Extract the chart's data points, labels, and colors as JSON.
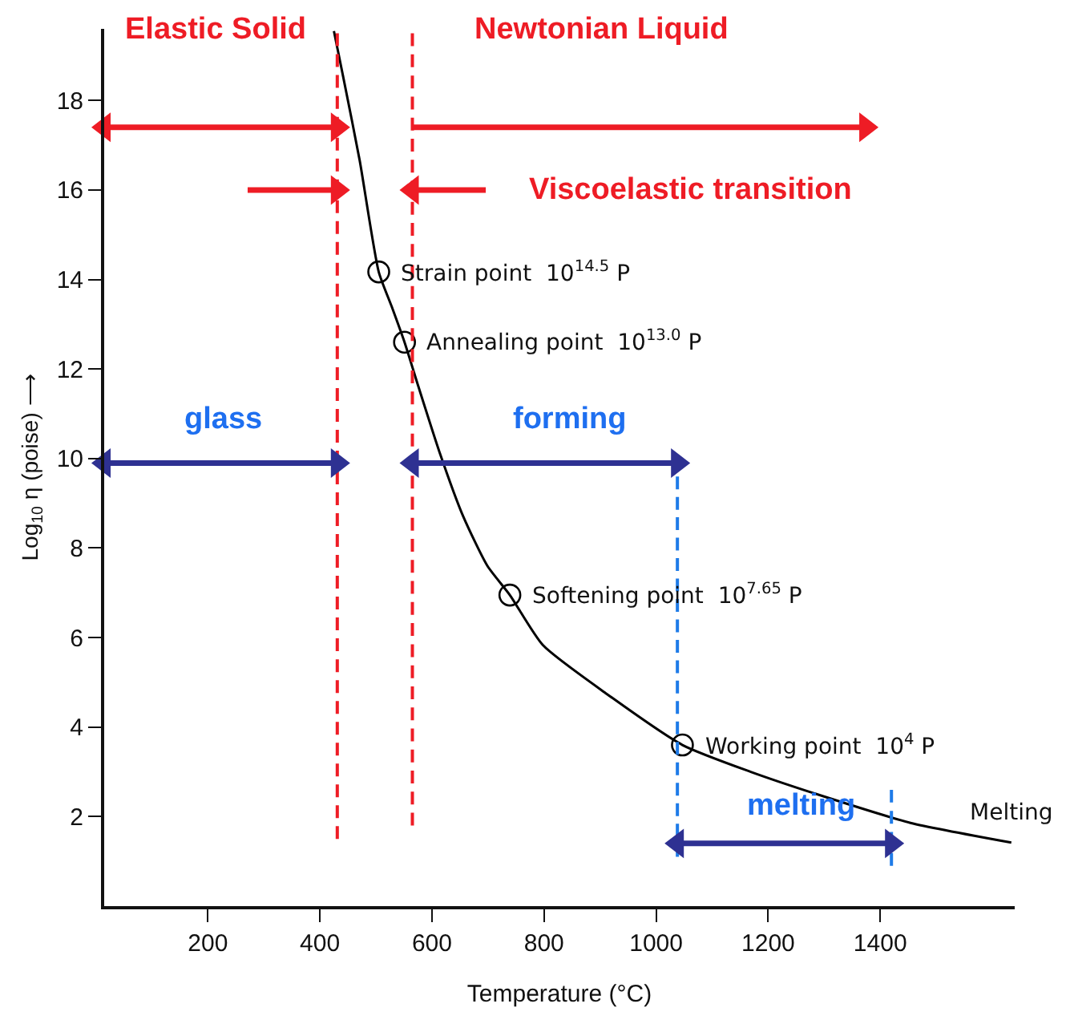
{
  "chart_data": {
    "type": "line",
    "xlabel": "Temperature (°C)",
    "ylabel": "Log$_{10}$ η (poise) ⟶",
    "xlim": [
      15,
      1640
    ],
    "ylim": [
      0,
      19.6
    ],
    "xticks": [
      200,
      400,
      600,
      800,
      1000,
      1200,
      1400
    ],
    "yticks": [
      2,
      4,
      6,
      8,
      10,
      12,
      14,
      16,
      18
    ],
    "series": [
      {
        "type": "line",
        "color": "#000000",
        "marker": "none",
        "line_style": "solid",
        "x": [
          425,
          442,
          471,
          505,
          528,
          551,
          576,
          613,
          656,
          699,
          739,
          798,
          912,
          1047,
          1169,
          1312,
          1454,
          1634
        ],
        "values": [
          19.55,
          18.5,
          16.66,
          14.17,
          13.4,
          12.6,
          11.6,
          10.16,
          8.7,
          7.6,
          6.95,
          5.83,
          4.74,
          3.6,
          3.0,
          2.4,
          1.86,
          1.42
        ]
      },
      {
        "type": "scatter",
        "color": "#000000",
        "marker": "circle",
        "x": [
          505,
          551,
          739,
          1047
        ],
        "values": [
          14.17,
          12.6,
          6.95,
          3.6
        ]
      },
      {
        "color": "#ee1c25",
        "marker": "none",
        "line_style": "dashed",
        "x": [
          431,
          431
        ],
        "values": [
          1.5,
          19.5
        ]
      },
      {
        "color": "#ee1c25",
        "marker": "none",
        "line_style": "dashed",
        "x": [
          565,
          565
        ],
        "values": [
          1.8,
          19.5
        ]
      },
      {
        "color": "#1e7be8",
        "marker": "none",
        "line_style": "dashed",
        "x": [
          1038,
          1038
        ],
        "values": [
          1.1,
          9.6
        ]
      },
      {
        "color": "#1e7be8",
        "marker": "none",
        "line_style": "dashed",
        "x": [
          1420,
          1420
        ],
        "values": [
          0.9,
          2.6
        ]
      },
      {
        "type": "line",
        "color": "#ee1c25",
        "marker": "triangle",
        "line_style": "solid",
        "x": [
          15,
          431
        ],
        "values": [
          17.4,
          17.4
        ]
      },
      {
        "type": "line",
        "color": "#ee1c25",
        "marker": "triangle",
        "line_style": "solid",
        "x": [
          565,
          1374
        ],
        "values": [
          17.4,
          17.4
        ]
      },
      {
        "type": "line",
        "color": "#ee1c25",
        "marker": "triangle",
        "line_style": "solid",
        "x": [
          271,
          431
        ],
        "values": [
          16.0,
          16.0
        ]
      },
      {
        "type": "line",
        "color": "#ee1c25",
        "marker": "triangle",
        "line_style": "solid",
        "x": [
          696,
          565
        ],
        "values": [
          16.0,
          16.0
        ]
      },
      {
        "type": "line",
        "color": "#2e3192",
        "marker": "triangle",
        "line_style": "solid",
        "x": [
          15,
          431
        ],
        "values": [
          9.9,
          9.9
        ]
      },
      {
        "type": "line",
        "color": "#2e3192",
        "marker": "triangle",
        "line_style": "solid",
        "x": [
          565,
          1038
        ],
        "values": [
          9.9,
          9.9
        ]
      },
      {
        "type": "line",
        "color": "#2e3192",
        "marker": "triangle",
        "line_style": "solid",
        "x": [
          1038,
          1420
        ],
        "values": [
          1.4,
          1.4
        ]
      }
    ],
    "annotations": [
      "Elastic Solid",
      "Newtonian Liquid",
      "Viscoelastic transition",
      "glass",
      "forming",
      "melting",
      {
        "text": "Strain point  10$^{14.5}$ P",
        "x": 505,
        "y": 14.17
      },
      {
        "text": "Annealing point  10$^{13.0}$ P",
        "x": 551,
        "y": 12.6
      },
      {
        "text": "Softening point  10$^{7.65}$ P",
        "x": 739,
        "y": 6.95
      },
      {
        "text": "Working point  10$^{4}$ P",
        "x": 1047,
        "y": 3.6
      },
      "Melting"
    ]
  }
}
